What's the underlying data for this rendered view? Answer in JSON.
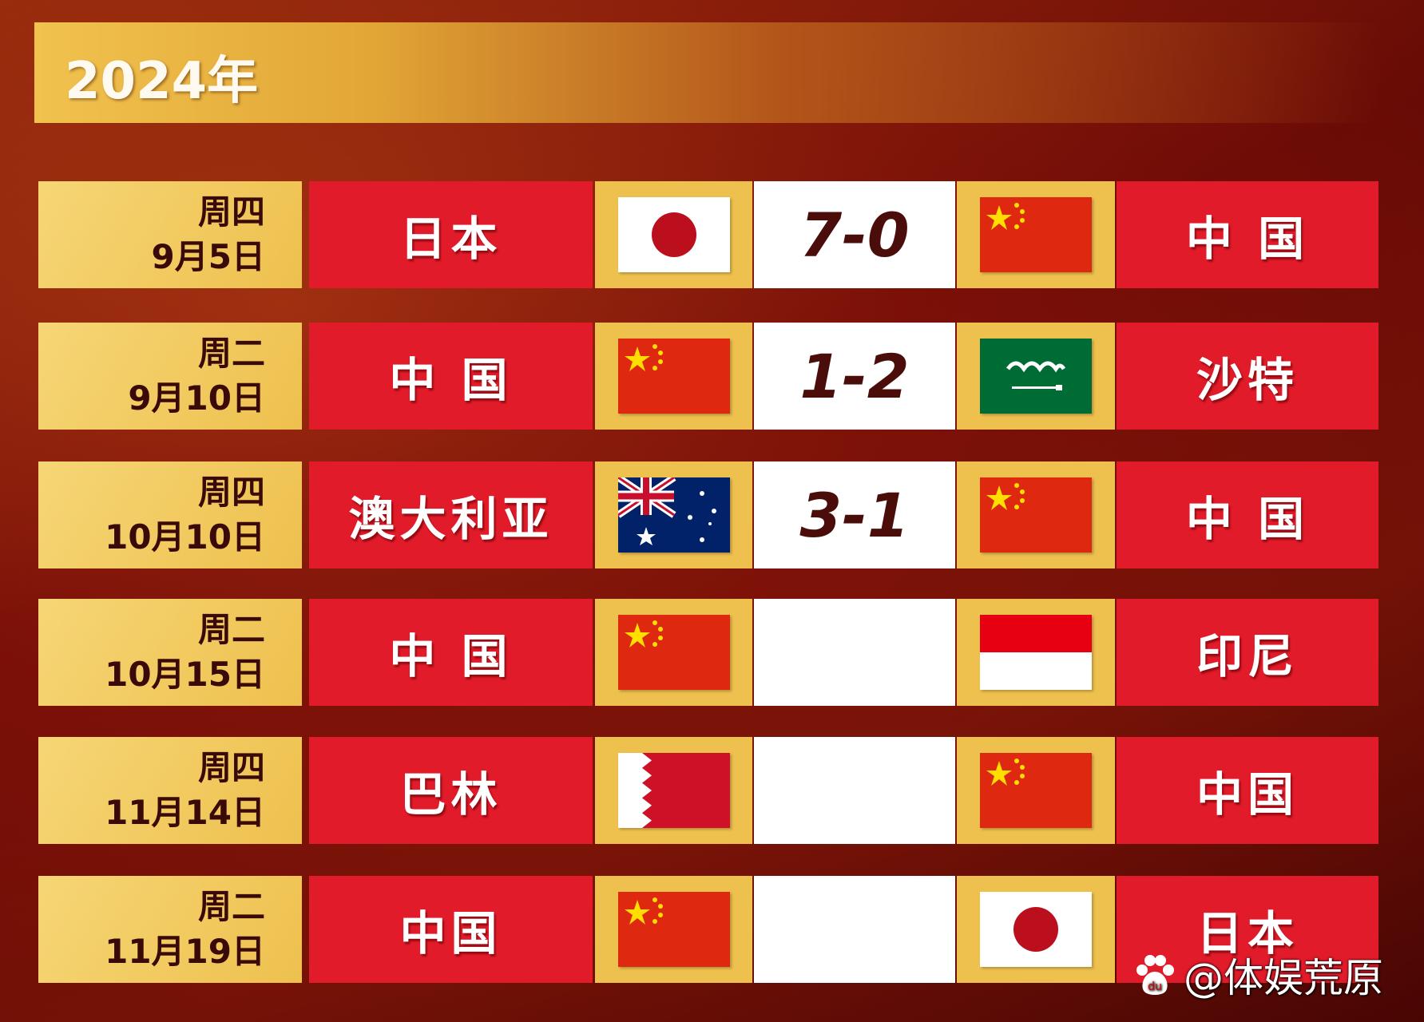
{
  "header": {
    "title": "2024年"
  },
  "matches": [
    {
      "weekday": "周四",
      "date": "9月5日",
      "home": "日本",
      "home_flag": "japan-flag",
      "score": "7-0",
      "away": "中 国",
      "away_flag": "china-flag"
    },
    {
      "weekday": "周二",
      "date": "9月10日",
      "home": "中 国",
      "home_flag": "china-flag",
      "score": "1-2",
      "away": "沙特",
      "away_flag": "saudi-arabia-flag"
    },
    {
      "weekday": "周四",
      "date": "10月10日",
      "home": "澳大利亚",
      "home_flag": "australia-flag",
      "score": "3-1",
      "away": "中 国",
      "away_flag": "china-flag"
    },
    {
      "weekday": "周二",
      "date": "10月15日",
      "home": "中 国",
      "home_flag": "china-flag",
      "score": "",
      "away": "印尼",
      "away_flag": "indonesia-flag"
    },
    {
      "weekday": "周四",
      "date": "11月14日",
      "home": "巴林",
      "home_flag": "bahrain-flag",
      "score": "",
      "away": "中国",
      "away_flag": "china-flag"
    },
    {
      "weekday": "周二",
      "date": "11月19日",
      "home": "中国",
      "home_flag": "china-flag",
      "score": "",
      "away": "日本",
      "away_flag": "japan-flag"
    }
  ],
  "watermark": {
    "text": "@体娱荒原",
    "logo": "baidu-paw-icon"
  },
  "colors": {
    "team_bg": "#e21b2a",
    "gold": "#eec04e",
    "score_text": "#4a0d0a"
  }
}
